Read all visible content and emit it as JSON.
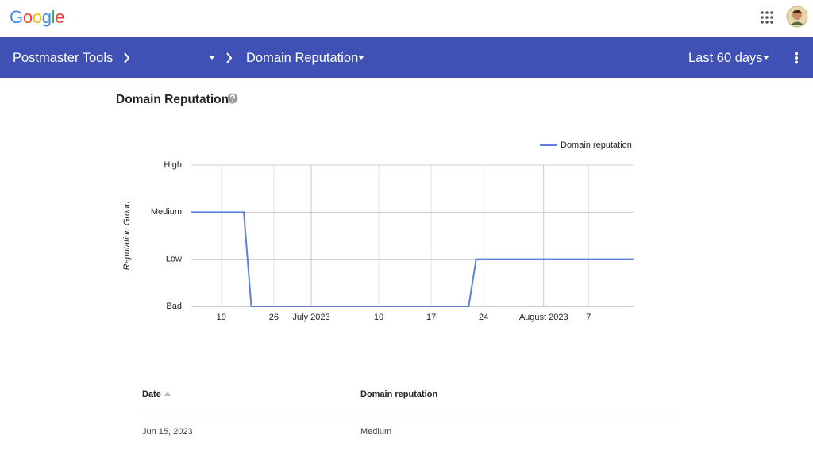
{
  "header": {
    "logo": "Google"
  },
  "nav": {
    "product": "Postmaster Tools",
    "dashboard": "Domain Reputation",
    "range": "Last 60 days"
  },
  "section_title": "Domain Reputation",
  "chart_data": {
    "type": "line",
    "y_label": "Reputation Group",
    "x": [
      "2023-06-15",
      "2023-06-22",
      "2023-06-23",
      "2023-07-22",
      "2023-07-23",
      "2023-08-13"
    ],
    "series": [
      {
        "name": "Domain reputation",
        "color": "#5b80de",
        "values": [
          2,
          2,
          0,
          0,
          1,
          1
        ]
      }
    ],
    "xlim": [
      "2023-06-15",
      "2023-08-13"
    ],
    "xticks": [
      {
        "value": "2023-06-19",
        "label": "19"
      },
      {
        "value": "2023-06-26",
        "label": "26"
      },
      {
        "value": "2023-07-01",
        "label": "July 2023"
      },
      {
        "value": "2023-07-10",
        "label": "10"
      },
      {
        "value": "2023-07-17",
        "label": "17"
      },
      {
        "value": "2023-07-24",
        "label": "24"
      },
      {
        "value": "2023-08-01",
        "label": "August 2023"
      },
      {
        "value": "2023-08-07",
        "label": "7"
      }
    ],
    "ylim": [
      0,
      3
    ],
    "yticks": [
      {
        "value": 0,
        "label": "Bad"
      },
      {
        "value": 1,
        "label": "Low"
      },
      {
        "value": 2,
        "label": "Medium"
      },
      {
        "value": 3,
        "label": "High"
      }
    ],
    "grid": true,
    "legend": "top-right"
  },
  "table": {
    "columns": [
      "Date",
      "Domain reputation"
    ],
    "rows": [
      [
        "Jun 15, 2023",
        "Medium"
      ]
    ]
  }
}
